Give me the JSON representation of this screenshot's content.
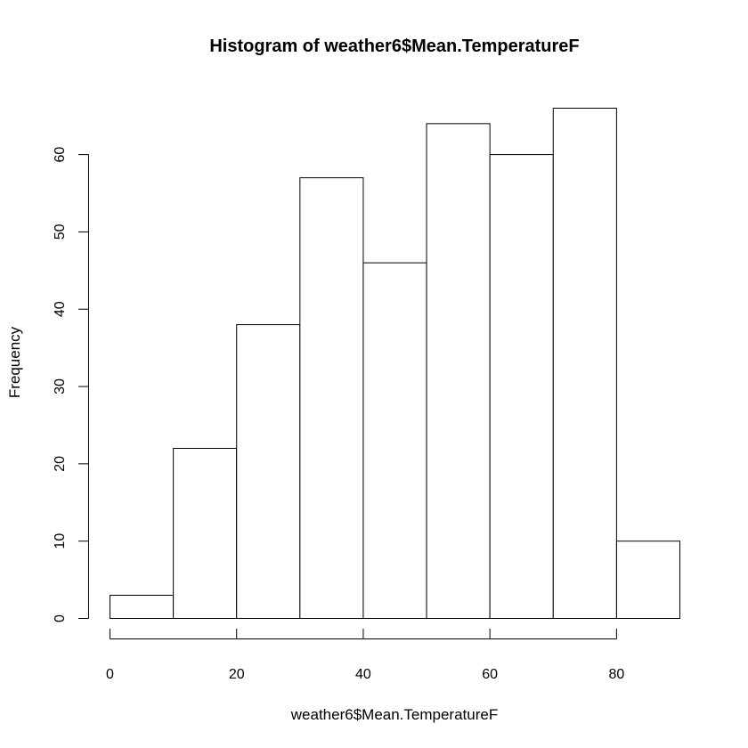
{
  "chart_data": {
    "type": "bar",
    "title": "Histogram of weather6$Mean.TemperatureF",
    "xlabel": "weather6$Mean.TemperatureF",
    "ylabel": "Frequency",
    "bins": [
      {
        "start": 0,
        "end": 10,
        "count": 3
      },
      {
        "start": 10,
        "end": 20,
        "count": 22
      },
      {
        "start": 20,
        "end": 30,
        "count": 38
      },
      {
        "start": 30,
        "end": 40,
        "count": 57
      },
      {
        "start": 40,
        "end": 50,
        "count": 46
      },
      {
        "start": 50,
        "end": 60,
        "count": 64
      },
      {
        "start": 60,
        "end": 70,
        "count": 60
      },
      {
        "start": 70,
        "end": 80,
        "count": 66
      },
      {
        "start": 80,
        "end": 90,
        "count": 10
      }
    ],
    "xlim": [
      0,
      90
    ],
    "ylim": [
      0,
      66
    ],
    "x_ticks": [
      0,
      20,
      40,
      60,
      80
    ],
    "y_ticks": [
      0,
      10,
      20,
      30,
      40,
      50,
      60
    ],
    "grid": false,
    "bar_fill": "#ffffff",
    "bar_stroke": "#000000"
  }
}
